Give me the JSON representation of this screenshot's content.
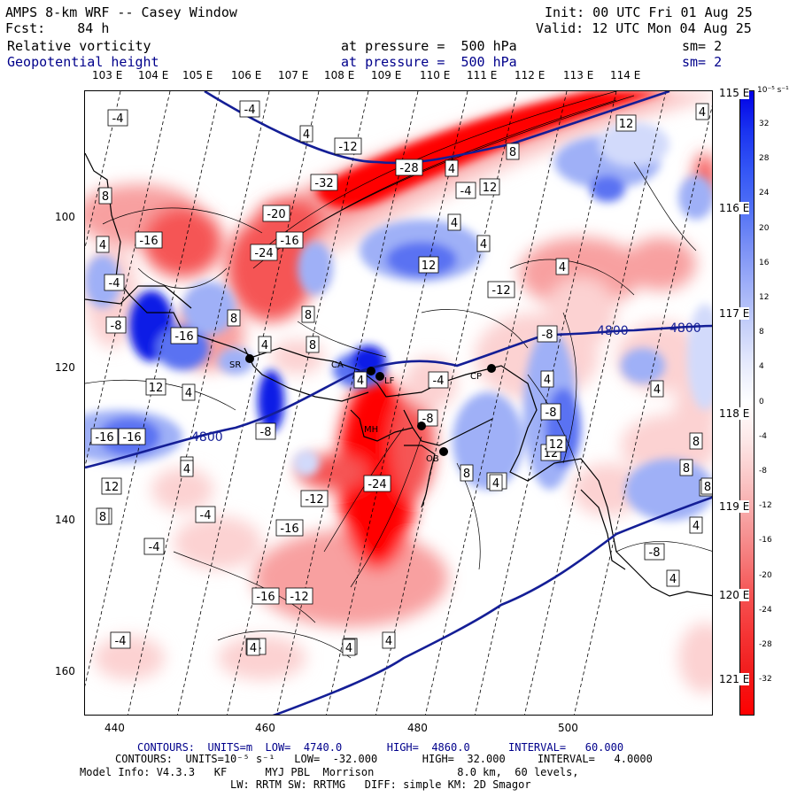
{
  "header": {
    "model_title": "AMPS 8-km WRF -- Casey Window",
    "forecast": "Fcst:    84 h",
    "init": "Init: 00 UTC Fri 01 Aug 25",
    "valid": "Valid: 12 UTC Mon 04 Aug 25",
    "field1_name": "Relative vorticity",
    "field1_level": "at pressure =  500 hPa",
    "field1_sm": "sm= 2",
    "field2_name": "Geopotential height",
    "field2_level": "at pressure =  500 hPa",
    "field2_sm": "sm= 2"
  },
  "lon_labels": [
    "103 E",
    "104 E",
    "105 E",
    "106 E",
    "107 E",
    "108 E",
    "109 E",
    "110 E",
    "111 E",
    "112 E",
    "113 E",
    "114 E"
  ],
  "lat_labels": [
    "115 E",
    "116 E",
    "117 E",
    "118 E",
    "119 E",
    "120 E",
    "121 E"
  ],
  "x_ticks": [
    "440",
    "460",
    "480",
    "500"
  ],
  "y_ticks": [
    "100",
    "120",
    "140",
    "160"
  ],
  "colorbar": {
    "unit_label": "10⁻⁵ s⁻¹",
    "ticks": [
      "32",
      "28",
      "24",
      "20",
      "16",
      "12",
      "8",
      "4",
      "0",
      "-4",
      "-8",
      "-12",
      "-16",
      "-20",
      "-24",
      "-28",
      "-32"
    ],
    "colors": [
      "#0000e6",
      "#1a33f0",
      "#3355f5",
      "#5070f5",
      "#7a90f5",
      "#a0b0f8",
      "#c5cffa",
      "#e6eafc",
      "#ffffff",
      "#fde6e6",
      "#fac5c5",
      "#f7a0a0",
      "#f57a7a",
      "#f55050",
      "#f53333",
      "#f01a1a",
      "#ff0000"
    ]
  },
  "height_contour_labels": [
    "4800",
    "4800",
    "4800"
  ],
  "vorticity_labels": [
    "-4",
    "-4",
    "4",
    "-12",
    "-4",
    "-28",
    "4",
    "8",
    "12",
    "4",
    "-32",
    "12",
    "8",
    "-20",
    "4",
    "-16",
    "4",
    "-24",
    "-16",
    "4",
    "12",
    "4",
    "-12",
    "8",
    "-4",
    "8",
    "4",
    "-8",
    "8",
    "-8",
    "-16",
    "4",
    "12",
    "4",
    "-4",
    "4",
    "-8",
    "-8",
    "4",
    "8",
    "-8",
    "4",
    "-16",
    "-16",
    "12",
    "8",
    "4",
    "8",
    "12",
    "-4",
    "12",
    "4",
    "8",
    "-12",
    "-24",
    "12",
    "8",
    "-16",
    "8",
    "-4",
    "-4",
    "4",
    "-8",
    "4",
    "-4",
    "-16",
    "-12",
    "4",
    "-4",
    "8",
    "4",
    "4",
    "4"
  ],
  "stations": [
    "SR",
    "CA",
    "LF",
    "CP",
    "MH",
    "OB"
  ],
  "footer": {
    "height_units": "CONTOURS:  UNITS=m  LOW=  4740.0       HIGH=  4860.0      INTERVAL=   60.000",
    "vort_units": "CONTOURS:  UNITS=10⁻⁵ s⁻¹   LOW=  -32.000       HIGH=  32.000     INTERVAL=   4.0000",
    "model_info": "Model Info: V4.3.3   KF      MYJ PBL  Morrison             8.0 km,  60 levels,",
    "physics": "LW: RRTM SW: RRTMG   DIFF: simple KM: 2D Smagor"
  }
}
